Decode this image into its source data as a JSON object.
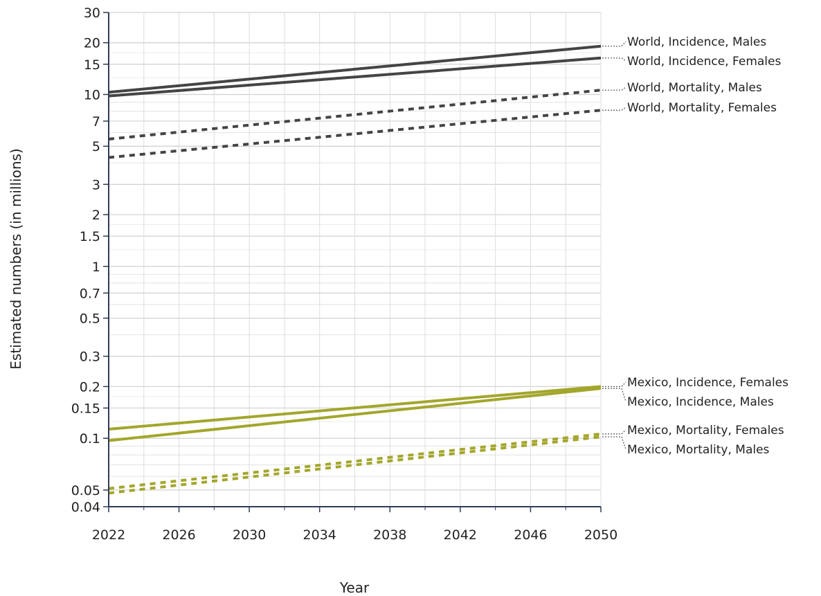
{
  "chart_data": {
    "type": "line",
    "title": "",
    "xlabel": "Year",
    "ylabel": "Estimated numbers (in millions)",
    "yscale": "log",
    "xlim": [
      2022,
      2050
    ],
    "ylim": [
      0.04,
      30
    ],
    "grid": true,
    "legend": "direct labels at right end of lines",
    "x_ticks": [
      "2022",
      "2026",
      "2030",
      "2034",
      "2038",
      "2042",
      "2046",
      "2050"
    ],
    "y_ticks": [
      {
        "value": 30,
        "label": "30"
      },
      {
        "value": 20,
        "label": "20"
      },
      {
        "value": 15,
        "label": "15"
      },
      {
        "value": 10,
        "label": "10"
      },
      {
        "value": 7,
        "label": "7"
      },
      {
        "value": 5,
        "label": "5"
      },
      {
        "value": 3,
        "label": "3"
      },
      {
        "value": 2,
        "label": "2"
      },
      {
        "value": 1.5,
        "label": "1.5"
      },
      {
        "value": 1,
        "label": "1"
      },
      {
        "value": 0.7,
        "label": "0.7"
      },
      {
        "value": 0.5,
        "label": "0.5"
      },
      {
        "value": 0.3,
        "label": "0.3"
      },
      {
        "value": 0.2,
        "label": "0.2"
      },
      {
        "value": 0.15,
        "label": "0.15"
      },
      {
        "value": 0.1,
        "label": "0.1"
      },
      {
        "value": 0.05,
        "label": "0.05"
      },
      {
        "value": 0.04,
        "label": "0.04"
      }
    ],
    "series": [
      {
        "name": "World, Incidence, Males",
        "x": [
          2022,
          2050
        ],
        "values": [
          10.3,
          19.1
        ],
        "color": "#444444",
        "dashed": false
      },
      {
        "name": "World, Incidence, Females",
        "x": [
          2022,
          2050
        ],
        "values": [
          9.8,
          16.3
        ],
        "color": "#444444",
        "dashed": false
      },
      {
        "name": "World, Mortality, Males",
        "x": [
          2022,
          2050
        ],
        "values": [
          5.5,
          10.6
        ],
        "color": "#444444",
        "dashed": true
      },
      {
        "name": "World, Mortality, Females",
        "x": [
          2022,
          2050
        ],
        "values": [
          4.3,
          8.1
        ],
        "color": "#444444",
        "dashed": true
      },
      {
        "name": "Mexico, Incidence, Females",
        "x": [
          2022,
          2050
        ],
        "values": [
          0.113,
          0.2
        ],
        "color": "#a3a62b",
        "dashed": false
      },
      {
        "name": "Mexico, Incidence, Males",
        "x": [
          2022,
          2050
        ],
        "values": [
          0.097,
          0.195
        ],
        "color": "#a3a62b",
        "dashed": false
      },
      {
        "name": "Mexico, Mortality, Females",
        "x": [
          2022,
          2050
        ],
        "values": [
          0.051,
          0.106
        ],
        "color": "#a3a62b",
        "dashed": true
      },
      {
        "name": "Mexico, Mortality, Males",
        "x": [
          2022,
          2050
        ],
        "values": [
          0.048,
          0.102
        ],
        "color": "#a3a62b",
        "dashed": true
      }
    ],
    "labels": [
      {
        "text": "World, Incidence, Males",
        "anchor_value": 19.1
      },
      {
        "text": "World, Incidence, Females",
        "anchor_value": 16.3
      },
      {
        "text": "World, Mortality, Males",
        "anchor_value": 10.6
      },
      {
        "text": "World, Mortality, Females",
        "anchor_value": 8.1
      },
      {
        "text": "Mexico, Incidence, Females",
        "anchor_value": 0.2
      },
      {
        "text": "Mexico, Incidence, Males",
        "anchor_value": 0.195
      },
      {
        "text": "Mexico, Mortality, Females",
        "anchor_value": 0.106
      },
      {
        "text": "Mexico, Mortality, Males",
        "anchor_value": 0.102
      }
    ]
  }
}
